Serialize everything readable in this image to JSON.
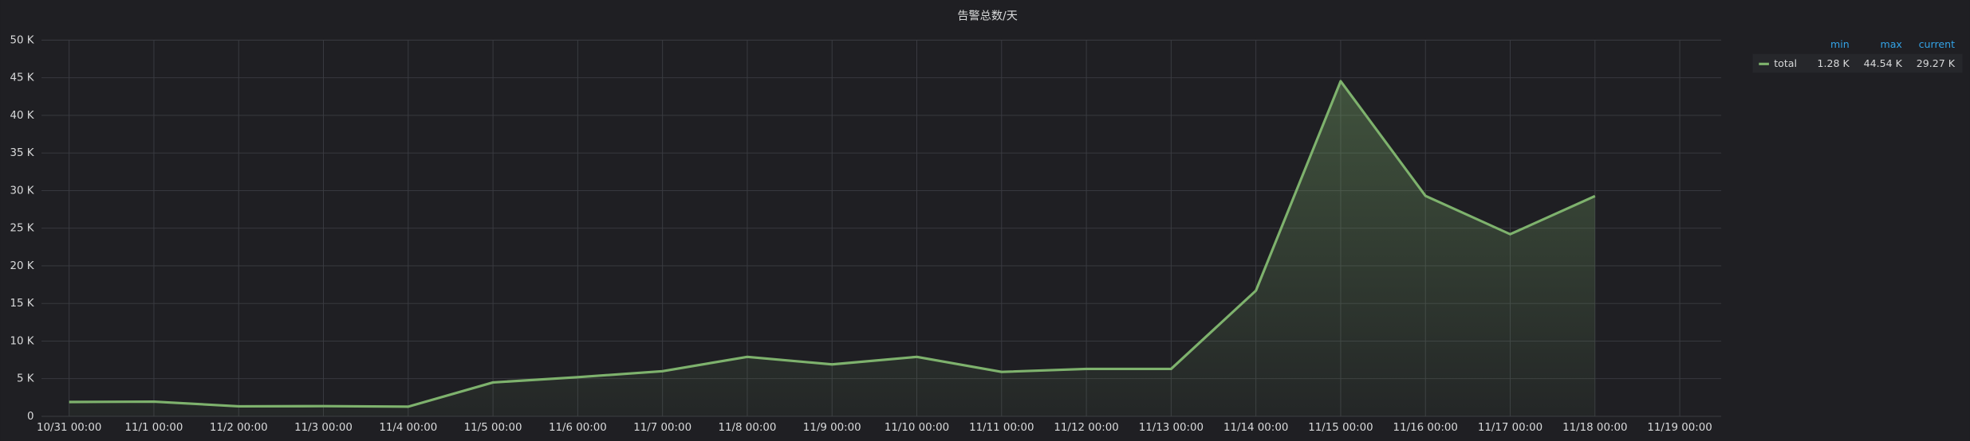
{
  "chart_data": {
    "type": "line",
    "title": "告警总数/天",
    "categories": [
      "10/31 00:00",
      "11/1 00:00",
      "11/2 00:00",
      "11/3 00:00",
      "11/4 00:00",
      "11/5 00:00",
      "11/6 00:00",
      "11/7 00:00",
      "11/8 00:00",
      "11/9 00:00",
      "11/10 00:00",
      "11/11 00:00",
      "11/12 00:00",
      "11/13 00:00",
      "11/14 00:00",
      "11/15 00:00",
      "11/16 00:00",
      "11/17 00:00",
      "11/18 00:00",
      "11/19 00:00"
    ],
    "series": [
      {
        "name": "total",
        "color": "#7eb26d",
        "values": [
          1900,
          1950,
          1330,
          1350,
          1280,
          4500,
          5200,
          6000,
          7900,
          6900,
          7900,
          5900,
          6300,
          6300,
          16700,
          44540,
          29300,
          24200,
          29270,
          null
        ]
      }
    ],
    "ylim": [
      0,
      50000
    ],
    "yticks": [
      0,
      {
        "value": 5000,
        "label": "5 K"
      },
      {
        "value": 10000,
        "label": "10 K"
      },
      {
        "value": 15000,
        "label": "15 K"
      },
      {
        "value": 20000,
        "label": "20 K"
      },
      {
        "value": 25000,
        "label": "25 K"
      },
      {
        "value": 30000,
        "label": "30 K"
      },
      {
        "value": 35000,
        "label": "35 K"
      },
      {
        "value": 40000,
        "label": "40 K"
      },
      {
        "value": 45000,
        "label": "45 K"
      },
      {
        "value": 50000,
        "label": "50 K"
      }
    ],
    "grid": true,
    "fill": true,
    "legend": {
      "position": "right",
      "columns": [
        "min",
        "max",
        "current"
      ],
      "cells": [
        "1.28 K",
        "44.54 K",
        "29.27 K"
      ]
    }
  }
}
